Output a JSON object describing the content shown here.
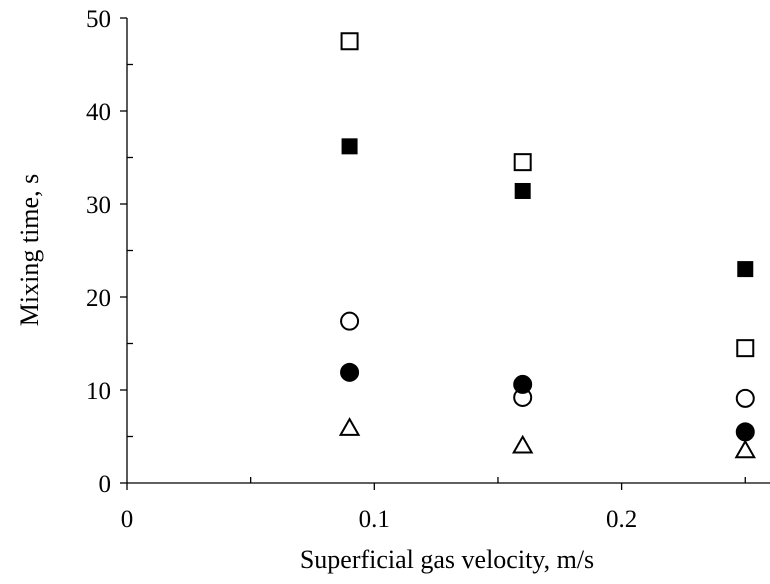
{
  "chart_data": {
    "type": "scatter",
    "xlabel": "Superficial gas velocity, m/s",
    "ylabel": "Mixing time, s",
    "xlim": [
      0,
      0.26
    ],
    "ylim": [
      0,
      50
    ],
    "x_ticks": [
      "0",
      "0.1",
      "0.2"
    ],
    "x_tick_values": [
      0,
      0.1,
      0.2
    ],
    "x_minor_ticks": [
      0.05,
      0.15,
      0.25
    ],
    "y_ticks": [
      "0",
      "10",
      "20",
      "30",
      "40",
      "50"
    ],
    "y_tick_values": [
      0,
      10,
      20,
      30,
      40,
      50
    ],
    "y_minor_ticks": [
      5,
      15,
      25,
      35,
      45
    ],
    "grid": false,
    "legend": "none",
    "series": [
      {
        "marker": "square-open",
        "color": "#000000",
        "x": [
          0.09,
          0.16,
          0.25
        ],
        "y": [
          47.5,
          34.5,
          14.5
        ]
      },
      {
        "marker": "square-filled",
        "color": "#000000",
        "x": [
          0.09,
          0.16,
          0.25
        ],
        "y": [
          36.2,
          31.4,
          23.0
        ]
      },
      {
        "marker": "circle-open",
        "color": "#000000",
        "x": [
          0.09,
          0.16,
          0.25
        ],
        "y": [
          17.4,
          9.2,
          9.1
        ]
      },
      {
        "marker": "circle-filled",
        "color": "#000000",
        "x": [
          0.09,
          0.16,
          0.25
        ],
        "y": [
          11.9,
          10.6,
          5.5
        ]
      },
      {
        "marker": "triangle-open",
        "color": "#000000",
        "x": [
          0.09,
          0.16,
          0.25
        ],
        "y": [
          5.9,
          4.0,
          3.5
        ]
      }
    ]
  }
}
